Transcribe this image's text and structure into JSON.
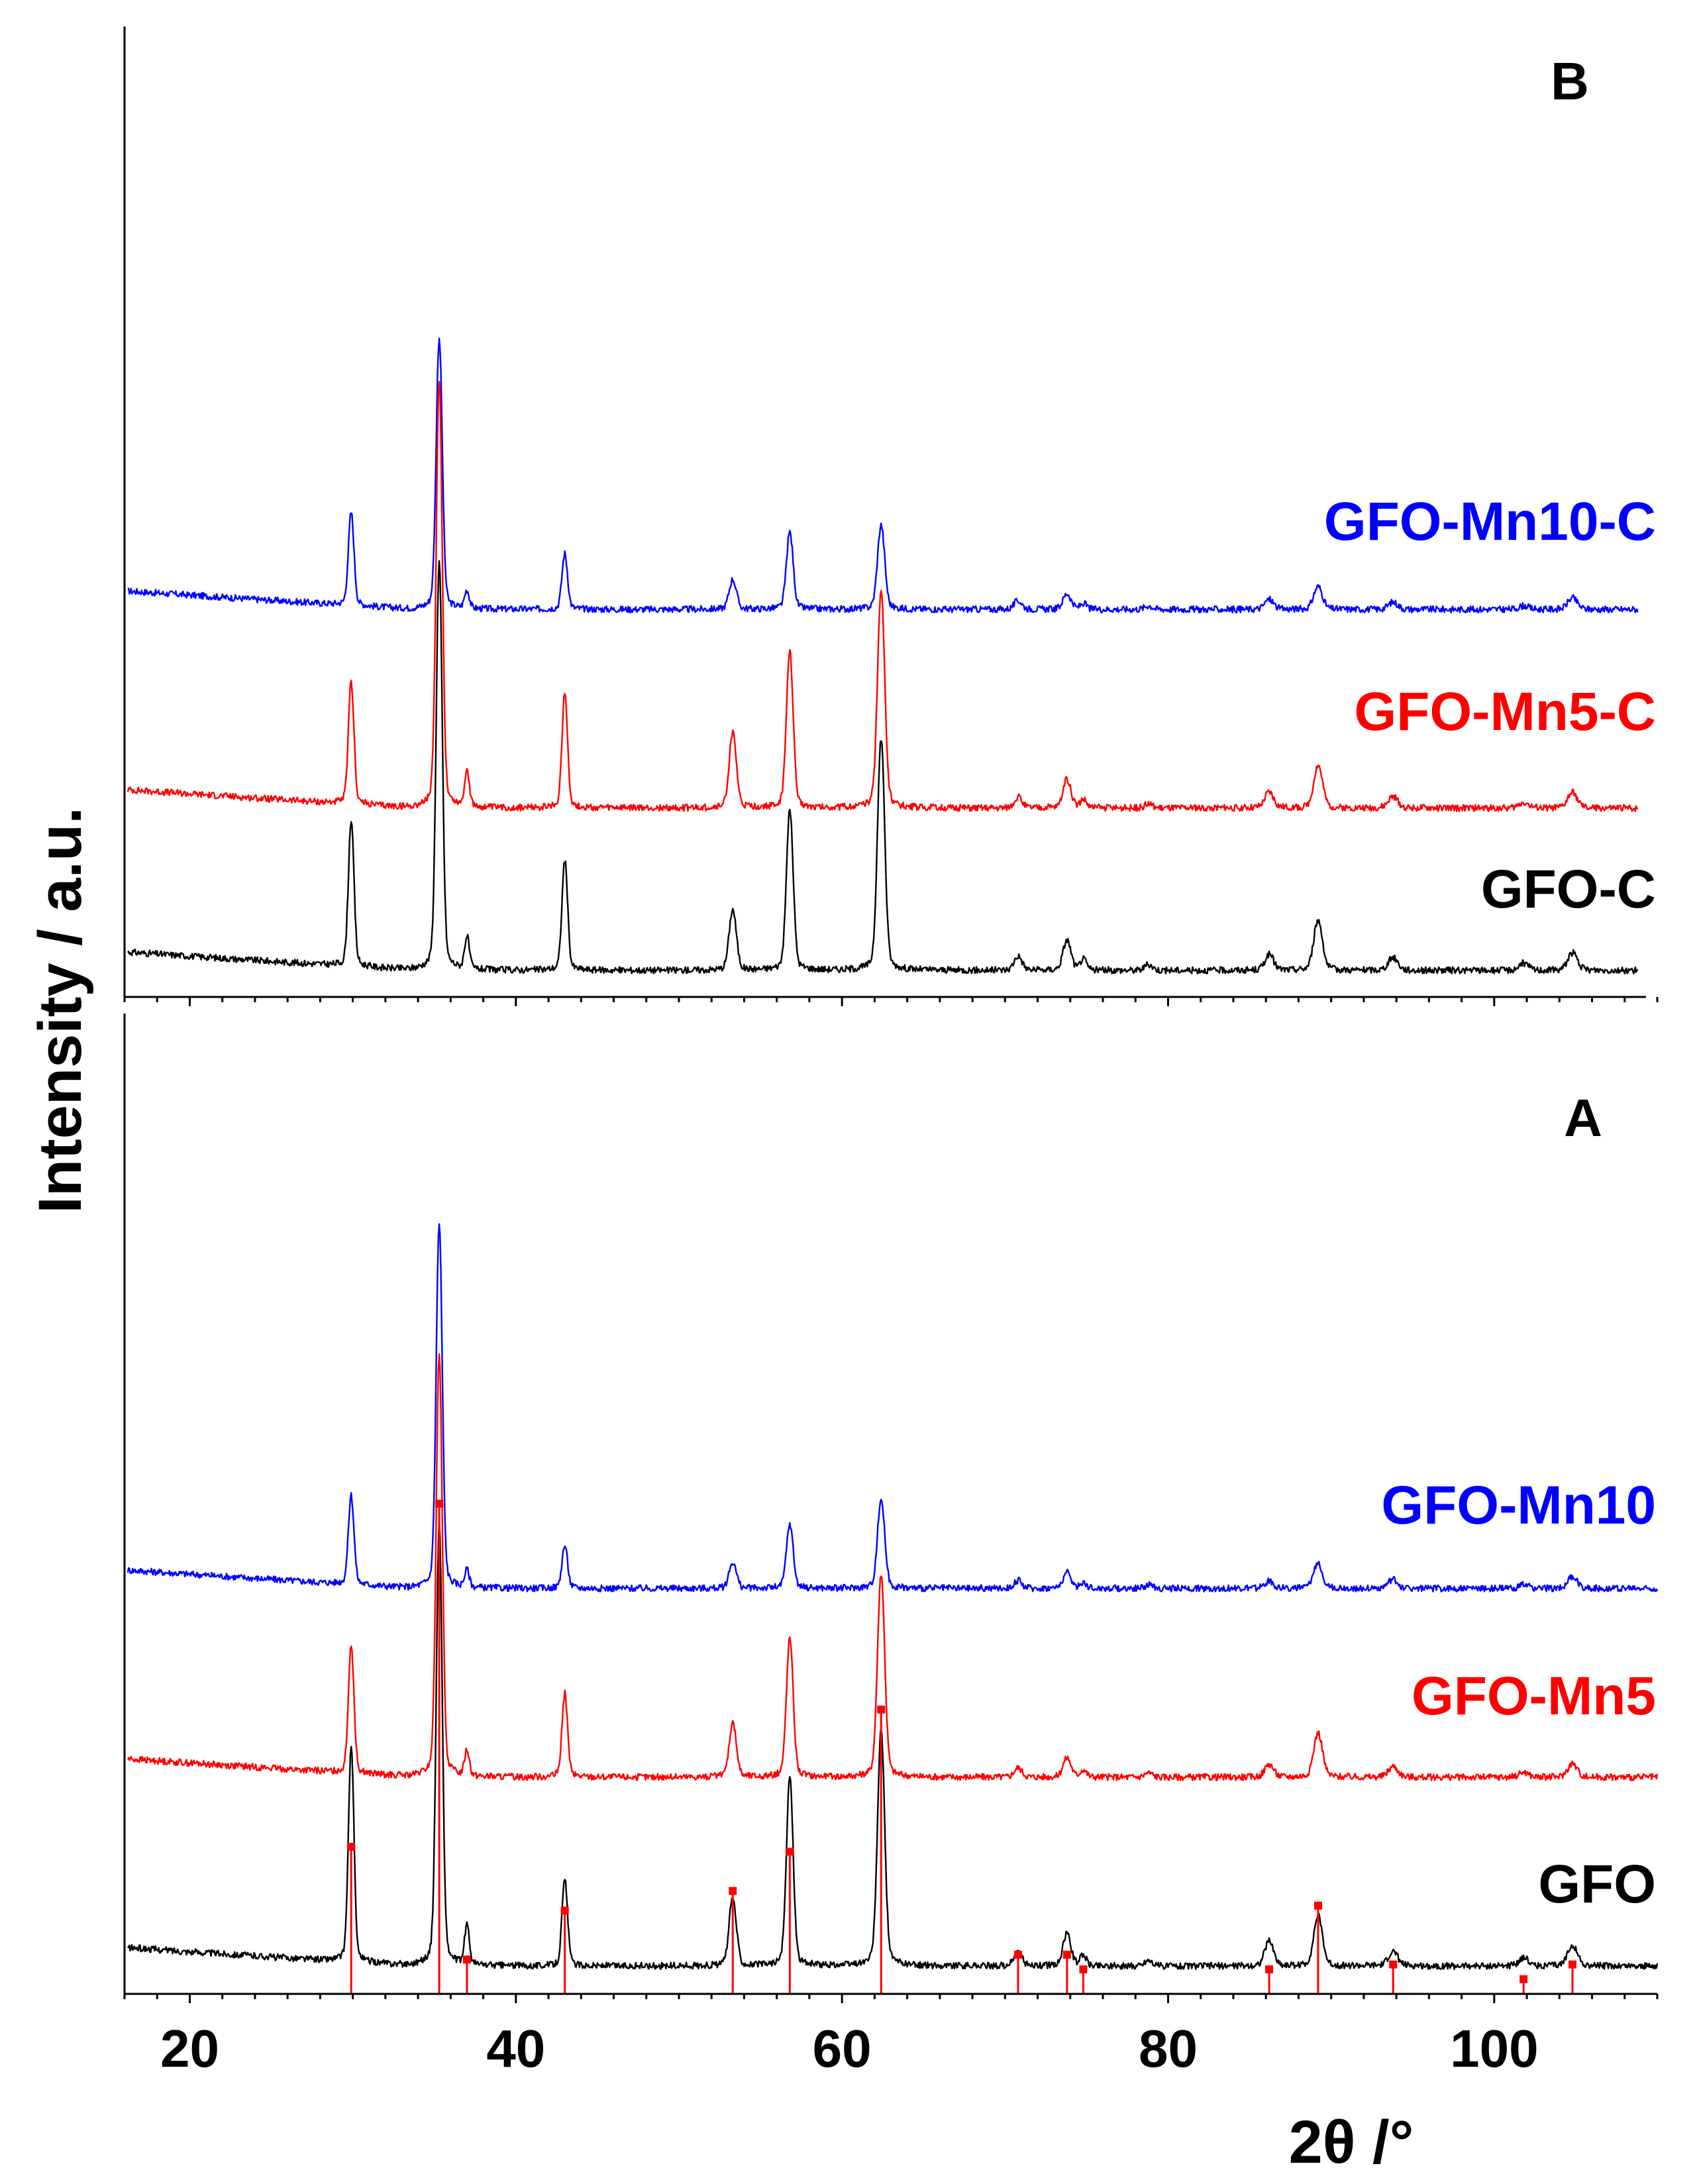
{
  "chart_data": {
    "type": "line",
    "y_label": "Intensity / a.u.",
    "x_label": "2θ /°",
    "xlim": [
      16,
      110
    ],
    "x_tick_labels": [
      "20",
      "40",
      "60",
      "80",
      "100"
    ],
    "x_tick_values": [
      20,
      40,
      60,
      80,
      100
    ],
    "colors": {
      "GFO": "#000000",
      "Mn5": "#ff0000",
      "Mn10": "#0000ff",
      "reference": "#ff0000"
    },
    "peaks": [
      {
        "pos": 29.9,
        "w": 0.35
      },
      {
        "pos": 35.3,
        "w": 0.38
      },
      {
        "pos": 37.0,
        "w": 0.3
      },
      {
        "pos": 43.0,
        "w": 0.35
      },
      {
        "pos": 53.3,
        "w": 0.45
      },
      {
        "pos": 56.8,
        "w": 0.42
      },
      {
        "pos": 62.4,
        "w": 0.45
      },
      {
        "pos": 70.8,
        "w": 0.5
      },
      {
        "pos": 73.8,
        "w": 0.5
      },
      {
        "pos": 74.8,
        "w": 0.4
      },
      {
        "pos": 78.8,
        "w": 0.5
      },
      {
        "pos": 86.2,
        "w": 0.55
      },
      {
        "pos": 89.2,
        "w": 0.55
      },
      {
        "pos": 93.8,
        "w": 0.6
      },
      {
        "pos": 101.8,
        "w": 0.6
      },
      {
        "pos": 104.8,
        "w": 0.6
      }
    ],
    "panels": [
      {
        "label": "B",
        "series": [
          {
            "name": "GFO-Mn10-C",
            "color": "#0000ff",
            "baseline": 0.0,
            "intensities": [
              130,
              380,
              25,
              78,
              42,
              108,
              118,
              12,
              22,
              8,
              5,
              14,
              32,
              10,
              5,
              16
            ]
          },
          {
            "name": "GFO-Mn5-C",
            "color": "#ff0000",
            "baseline": -300,
            "intensities": [
              170,
              600,
              50,
              160,
              105,
              220,
              305,
              15,
              40,
              12,
              6,
              22,
              60,
              16,
              8,
              22
            ]
          },
          {
            "name": "GFO-C",
            "color": "#000000",
            "baseline": -545,
            "intensities": [
              205,
              570,
              45,
              155,
              85,
              225,
              325,
              20,
              42,
              15,
              8,
              22,
              70,
              18,
              10,
              25
            ]
          }
        ]
      },
      {
        "label": "A",
        "series": [
          {
            "name": "GFO-Mn10",
            "color": "#0000ff",
            "baseline": 0.0,
            "intensities": [
              125,
              510,
              24,
              60,
              37,
              90,
              125,
              11,
              22,
              8,
              5,
              10,
              36,
              12,
              5,
              16
            ]
          },
          {
            "name": "GFO-Mn5",
            "color": "#ff0000",
            "baseline": -285,
            "intensities": [
              180,
              595,
              36,
              117,
              76,
              195,
              285,
              13,
              27,
              10,
              6,
              18,
              62,
              15,
              7,
              19
            ]
          },
          {
            "name": "GFO",
            "color": "#000000",
            "baseline": -570,
            "intensities": [
              300,
              620,
              55,
              120,
              95,
              265,
              330,
              20,
              45,
              15,
              8,
              35,
              70,
              20,
              12,
              30
            ]
          }
        ]
      }
    ],
    "reference_pattern": {
      "positions": [
        29.9,
        35.3,
        37.0,
        43.0,
        53.3,
        56.8,
        62.4,
        70.8,
        73.8,
        74.8,
        86.2,
        89.2,
        93.8,
        101.8,
        104.8
      ],
      "intensities": [
        30,
        100,
        7,
        17,
        21,
        29,
        58,
        8,
        8,
        5,
        5,
        18,
        6,
        3,
        6
      ]
    }
  }
}
